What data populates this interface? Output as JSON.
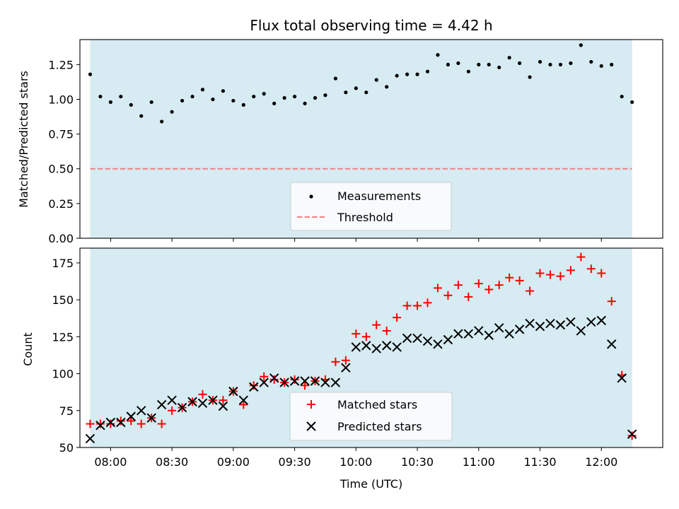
{
  "colors": {
    "shade": "#add8e6",
    "threshold": "#f08080",
    "measurements": "#000000",
    "matched": "#ff0000",
    "predicted": "#000000"
  },
  "chart_data": [
    {
      "type": "scatter",
      "title": "Flux total observing time = 4.42 h",
      "xlabel": "",
      "ylabel": "Matched/Predicted stars",
      "xlim": [
        "07:45",
        "12:30"
      ],
      "ylim": [
        0,
        1.43
      ],
      "yticks": [
        "0.00",
        "0.25",
        "0.50",
        "0.75",
        "1.00",
        "1.25"
      ],
      "shaded_interval": [
        "07:50",
        "12:15"
      ],
      "legend": {
        "placement": "lower center",
        "entries": [
          "Measurements",
          "Threshold"
        ]
      },
      "threshold": 0.5,
      "series": [
        {
          "name": "Measurements",
          "marker": "dot",
          "x": [
            "07:50",
            "07:55",
            "08:00",
            "08:05",
            "08:10",
            "08:15",
            "08:20",
            "08:25",
            "08:30",
            "08:35",
            "08:40",
            "08:45",
            "08:50",
            "08:55",
            "09:00",
            "09:05",
            "09:10",
            "09:15",
            "09:20",
            "09:25",
            "09:30",
            "09:35",
            "09:40",
            "09:45",
            "09:50",
            "09:55",
            "10:00",
            "10:05",
            "10:10",
            "10:15",
            "10:20",
            "10:25",
            "10:30",
            "10:35",
            "10:40",
            "10:45",
            "10:50",
            "10:55",
            "11:00",
            "11:05",
            "11:10",
            "11:15",
            "11:20",
            "11:25",
            "11:30",
            "11:35",
            "11:40",
            "11:45",
            "11:50",
            "11:55",
            "12:00",
            "12:05",
            "12:10",
            "12:15"
          ],
          "y": [
            1.18,
            1.02,
            0.98,
            1.02,
            0.96,
            0.88,
            0.98,
            0.84,
            0.91,
            0.99,
            1.02,
            1.07,
            1.0,
            1.06,
            0.99,
            0.96,
            1.02,
            1.04,
            0.97,
            1.01,
            1.02,
            0.97,
            1.01,
            1.03,
            1.15,
            1.05,
            1.08,
            1.05,
            1.14,
            1.09,
            1.17,
            1.18,
            1.18,
            1.2,
            1.32,
            1.25,
            1.26,
            1.2,
            1.25,
            1.25,
            1.23,
            1.3,
            1.26,
            1.16,
            1.27,
            1.25,
            1.25,
            1.26,
            1.39,
            1.27,
            1.24,
            1.25,
            1.02,
            0.98
          ]
        }
      ]
    },
    {
      "type": "scatter",
      "title": "",
      "xlabel": "Time (UTC)",
      "ylabel": "Count",
      "xlim": [
        "07:45",
        "12:30"
      ],
      "ylim": [
        50,
        185
      ],
      "xticks": [
        "08:00",
        "08:30",
        "09:00",
        "09:30",
        "10:00",
        "10:30",
        "11:00",
        "11:30",
        "12:00"
      ],
      "yticks": [
        "50",
        "75",
        "100",
        "125",
        "150",
        "175"
      ],
      "shaded_interval": [
        "07:50",
        "12:15"
      ],
      "legend": {
        "placement": "lower center",
        "entries": [
          "Matched stars",
          "Predicted stars"
        ]
      },
      "x": [
        "07:50",
        "07:55",
        "08:00",
        "08:05",
        "08:10",
        "08:15",
        "08:20",
        "08:25",
        "08:30",
        "08:35",
        "08:40",
        "08:45",
        "08:50",
        "08:55",
        "09:00",
        "09:05",
        "09:10",
        "09:15",
        "09:20",
        "09:25",
        "09:30",
        "09:35",
        "09:40",
        "09:45",
        "09:50",
        "09:55",
        "10:00",
        "10:05",
        "10:10",
        "10:15",
        "10:20",
        "10:25",
        "10:30",
        "10:35",
        "10:40",
        "10:45",
        "10:50",
        "10:55",
        "11:00",
        "11:05",
        "11:10",
        "11:15",
        "11:20",
        "11:25",
        "11:30",
        "11:35",
        "11:40",
        "11:45",
        "11:50",
        "11:55",
        "12:00",
        "12:05",
        "12:10",
        "12:15"
      ],
      "series": [
        {
          "name": "Matched stars",
          "marker": "plus",
          "values": [
            66,
            66,
            66,
            68,
            68,
            66,
            70,
            66,
            75,
            77,
            81,
            86,
            82,
            82,
            88,
            79,
            92,
            98,
            96,
            94,
            96,
            92,
            95,
            96,
            108,
            109,
            127,
            125,
            133,
            129,
            138,
            146,
            146,
            148,
            158,
            153,
            160,
            152,
            161,
            157,
            160,
            165,
            163,
            156,
            168,
            167,
            166,
            170,
            179,
            171,
            168,
            149,
            99,
            58
          ]
        },
        {
          "name": "Predicted stars",
          "marker": "x",
          "values": [
            56,
            65,
            67,
            67,
            71,
            75,
            70,
            79,
            82,
            77,
            81,
            80,
            82,
            78,
            88,
            82,
            91,
            94,
            97,
            94,
            95,
            95,
            95,
            94,
            94,
            104,
            118,
            119,
            117,
            119,
            118,
            124,
            124,
            122,
            120,
            123,
            127,
            127,
            129,
            126,
            131,
            127,
            130,
            134,
            132,
            134,
            133,
            135,
            129,
            135,
            136,
            120,
            97,
            59
          ]
        }
      ]
    }
  ]
}
